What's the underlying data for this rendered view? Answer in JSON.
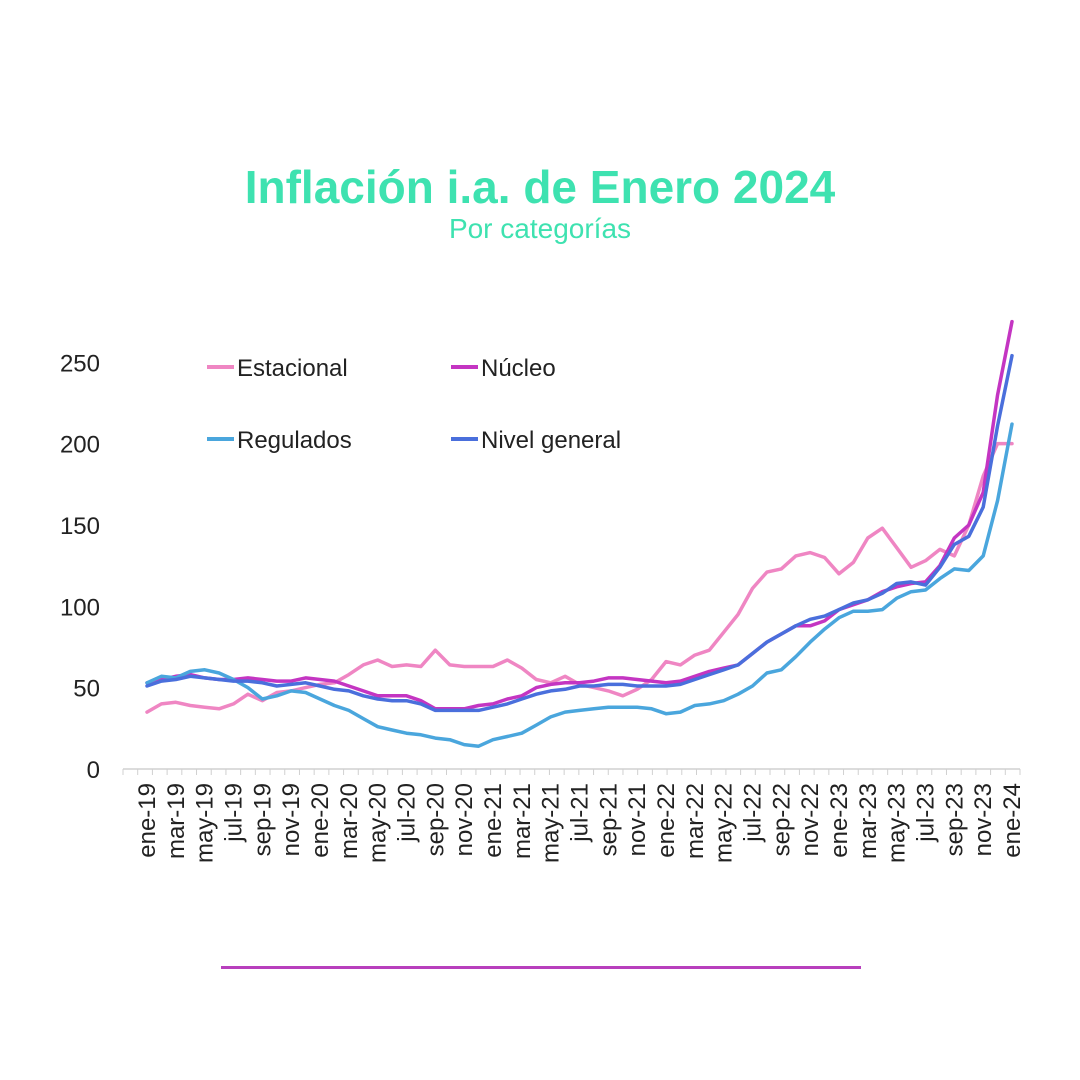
{
  "page": {
    "title": "Inflación i.a. de Enero 2024",
    "subtitle": "Por categorías"
  },
  "colors": {
    "title": "#3ee2b0",
    "estacional": "#ef86c3",
    "nucleo": "#c435c2",
    "regulados": "#4aa6dd",
    "nivel_general": "#4a6fdc",
    "footer_line": "#b83fbd"
  },
  "chart_data": {
    "type": "line",
    "title": "",
    "xlabel": "",
    "ylabel": "",
    "ylim": [
      0,
      270
    ],
    "yticks": [
      0,
      50,
      100,
      150,
      200,
      250
    ],
    "grid": false,
    "legend_position": "top-left",
    "x": [
      "ene-19",
      "feb-19",
      "mar-19",
      "abr-19",
      "may-19",
      "jun-19",
      "jul-19",
      "ago-19",
      "sep-19",
      "oct-19",
      "nov-19",
      "dic-19",
      "ene-20",
      "feb-20",
      "mar-20",
      "abr-20",
      "may-20",
      "jun-20",
      "jul-20",
      "ago-20",
      "sep-20",
      "oct-20",
      "nov-20",
      "dic-20",
      "ene-21",
      "feb-21",
      "mar-21",
      "abr-21",
      "may-21",
      "jun-21",
      "jul-21",
      "ago-21",
      "sep-21",
      "oct-21",
      "nov-21",
      "dic-21",
      "ene-22",
      "feb-22",
      "mar-22",
      "abr-22",
      "may-22",
      "jun-22",
      "jul-22",
      "ago-22",
      "sep-22",
      "oct-22",
      "nov-22",
      "dic-22",
      "ene-23",
      "feb-23",
      "mar-23",
      "abr-23",
      "may-23",
      "jun-23",
      "jul-23",
      "ago-23",
      "sep-23",
      "oct-23",
      "nov-23",
      "dic-23",
      "ene-24"
    ],
    "tick_labels": [
      "ene-19",
      "mar-19",
      "may-19",
      "jul-19",
      "sep-19",
      "nov-19",
      "ene-20",
      "mar-20",
      "may-20",
      "jul-20",
      "sep-20",
      "nov-20",
      "ene-21",
      "mar-21",
      "may-21",
      "jul-21",
      "sep-21",
      "nov-21",
      "ene-22",
      "mar-22",
      "may-22",
      "jul-22",
      "sep-22",
      "nov-22",
      "ene-23",
      "mar-23",
      "may-23",
      "jul-23",
      "sep-23",
      "nov-23",
      "ene-24"
    ],
    "series": [
      {
        "name": "Estacional",
        "color_key": "estacional",
        "values": [
          35,
          40,
          41,
          39,
          38,
          37,
          40,
          46,
          42,
          47,
          48,
          50,
          52,
          53,
          58,
          64,
          67,
          63,
          64,
          63,
          73,
          64,
          63,
          63,
          63,
          67,
          62,
          55,
          53,
          57,
          52,
          50,
          48,
          45,
          49,
          55,
          66,
          64,
          70,
          73,
          84,
          95,
          111,
          121,
          123,
          131,
          133,
          130,
          120,
          127,
          142,
          148,
          136,
          124,
          128,
          135,
          131,
          150,
          180,
          200,
          200
        ]
      },
      {
        "name": "Núcleo",
        "color_key": "nucleo",
        "values": [
          53,
          55,
          57,
          58,
          56,
          55,
          55,
          56,
          55,
          54,
          54,
          56,
          55,
          54,
          51,
          48,
          45,
          45,
          45,
          42,
          37,
          37,
          37,
          39,
          40,
          43,
          45,
          50,
          52,
          53,
          53,
          54,
          56,
          56,
          55,
          54,
          53,
          54,
          57,
          60,
          62,
          64,
          71,
          78,
          83,
          88,
          88,
          91,
          98,
          101,
          104,
          109,
          112,
          114,
          115,
          125,
          142,
          150,
          170,
          230,
          275
        ]
      },
      {
        "name": "Regulados",
        "color_key": "regulados",
        "values": [
          53,
          57,
          56,
          60,
          61,
          59,
          55,
          50,
          43,
          45,
          48,
          47,
          43,
          39,
          36,
          31,
          26,
          24,
          22,
          21,
          19,
          18,
          15,
          14,
          18,
          20,
          22,
          27,
          32,
          35,
          36,
          37,
          38,
          38,
          38,
          37,
          34,
          35,
          39,
          40,
          42,
          46,
          51,
          59,
          61,
          69,
          78,
          86,
          93,
          97,
          97,
          98,
          105,
          109,
          110,
          117,
          123,
          122,
          131,
          165,
          212
        ]
      },
      {
        "name": "Nivel general",
        "color_key": "nivel_general",
        "values": [
          51,
          54,
          55,
          57,
          56,
          55,
          54,
          54,
          53,
          51,
          52,
          53,
          51,
          49,
          48,
          45,
          43,
          42,
          42,
          40,
          36,
          36,
          36,
          36,
          38,
          40,
          43,
          46,
          48,
          49,
          51,
          51,
          52,
          52,
          51,
          51,
          51,
          52,
          55,
          58,
          61,
          64,
          71,
          78,
          83,
          88,
          92,
          94,
          98,
          102,
          104,
          108,
          114,
          115,
          113,
          124,
          138,
          143,
          161,
          211,
          254
        ]
      }
    ]
  }
}
